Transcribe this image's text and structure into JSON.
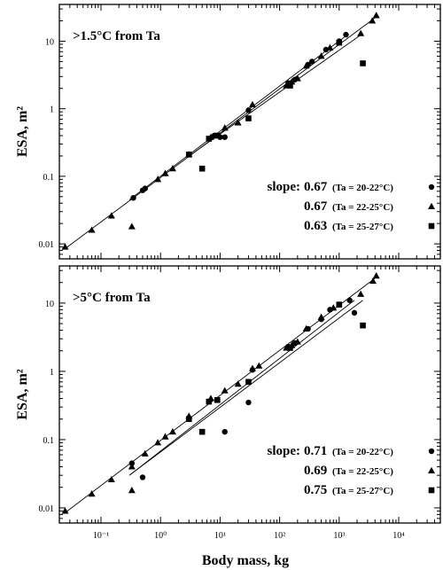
{
  "chart_data": [
    {
      "type": "scatter",
      "annotation": ">1.5°C from Ta",
      "ylabel": "ESA, m²",
      "xscale": "log",
      "yscale": "log",
      "xlim": [
        0.02,
        50000
      ],
      "ylim": [
        0.006,
        35
      ],
      "xticks": [],
      "yticks": [
        "0.01",
        "0.1",
        "1",
        "10"
      ],
      "slope_label": "slope:",
      "legend_placement": "bottom-right",
      "series": [
        {
          "marker": "circle",
          "slope": "0.67",
          "legend_text": "(Ta = 20-22°C)",
          "fit": [
            [
              0.3,
              0.045
            ],
            [
              1300,
              12
            ]
          ],
          "points": [
            [
              0.35,
              0.048
            ],
            [
              0.5,
              0.062
            ],
            [
              0.55,
              0.066
            ],
            [
              8,
              0.4
            ],
            [
              10,
              0.38
            ],
            [
              12,
              0.38
            ],
            [
              30,
              0.95
            ],
            [
              140,
              2.4
            ],
            [
              180,
              2.7
            ],
            [
              300,
              4.5
            ],
            [
              350,
              5
            ],
            [
              600,
              7.5
            ],
            [
              1000,
              10
            ],
            [
              1300,
              12.5
            ]
          ]
        },
        {
          "marker": "triangle",
          "slope": "0.67",
          "legend_text": "(Ta = 22-25°C)",
          "fit": [
            [
              0.025,
              0.0085
            ],
            [
              4500,
              24
            ]
          ],
          "points": [
            [
              0.025,
              0.009
            ],
            [
              0.07,
              0.016
            ],
            [
              0.15,
              0.026
            ],
            [
              0.33,
              0.018
            ],
            [
              0.9,
              0.09
            ],
            [
              1.2,
              0.11
            ],
            [
              1.6,
              0.13
            ],
            [
              3,
              0.21
            ],
            [
              7,
              0.38
            ],
            [
              12,
              0.52
            ],
            [
              20,
              0.62
            ],
            [
              35,
              1.15
            ],
            [
              130,
              2.2
            ],
            [
              160,
              2.5
            ],
            [
              200,
              2.8
            ],
            [
              280,
              4.3
            ],
            [
              500,
              6
            ],
            [
              700,
              8
            ],
            [
              2300,
              13
            ],
            [
              3600,
              20
            ],
            [
              4200,
              24
            ]
          ]
        },
        {
          "marker": "square",
          "slope": "0.63",
          "legend_text": "(Ta = 25-27°C)",
          "fit": [
            [
              3,
              0.2
            ],
            [
              2500,
              13
            ]
          ],
          "points": [
            [
              3,
              0.21
            ],
            [
              5,
              0.13
            ],
            [
              6.5,
              0.36
            ],
            [
              9,
              0.4
            ],
            [
              30,
              0.72
            ],
            [
              150,
              2.2
            ],
            [
              1000,
              9.5
            ],
            [
              2500,
              4.7
            ]
          ]
        }
      ]
    },
    {
      "type": "scatter",
      "annotation": ">5°C from Ta",
      "xlabel": "Body mass, kg",
      "ylabel": "ESA, m²",
      "xscale": "log",
      "yscale": "log",
      "xlim": [
        0.02,
        50000
      ],
      "ylim": [
        0.006,
        35
      ],
      "xticks": [
        "10⁻¹",
        "10⁰",
        "10¹",
        "10²",
        "10³",
        "10⁴"
      ],
      "yticks": [
        "0.01",
        "0.1",
        "1",
        "10"
      ],
      "slope_label": "slope:",
      "legend_placement": "bottom-right",
      "series": [
        {
          "marker": "circle",
          "slope": "0.71",
          "legend_text": "(Ta = 20-22°C)",
          "fit": [
            [
              0.3,
              0.03
            ],
            [
              1800,
              11
            ]
          ],
          "points": [
            [
              0.33,
              0.045
            ],
            [
              0.5,
              0.028
            ],
            [
              12,
              0.13
            ],
            [
              30,
              0.35
            ],
            [
              35,
              1.05
            ],
            [
              140,
              2.3
            ],
            [
              180,
              2.6
            ],
            [
              300,
              4.2
            ],
            [
              500,
              5.8
            ],
            [
              700,
              8
            ],
            [
              1000,
              9.5
            ],
            [
              1500,
              11
            ],
            [
              1800,
              7.2
            ]
          ]
        },
        {
          "marker": "triangle",
          "slope": "0.69",
          "legend_text": "(Ta = 22-25°C)",
          "fit": [
            [
              0.025,
              0.0085
            ],
            [
              4500,
              25
            ]
          ],
          "points": [
            [
              0.025,
              0.009
            ],
            [
              0.07,
              0.016
            ],
            [
              0.15,
              0.026
            ],
            [
              0.33,
              0.018
            ],
            [
              0.33,
              0.04
            ],
            [
              0.55,
              0.062
            ],
            [
              0.9,
              0.09
            ],
            [
              1.2,
              0.11
            ],
            [
              1.6,
              0.13
            ],
            [
              3,
              0.22
            ],
            [
              7,
              0.4
            ],
            [
              12,
              0.52
            ],
            [
              20,
              0.65
            ],
            [
              35,
              1.1
            ],
            [
              45,
              1.2
            ],
            [
              130,
              2.2
            ],
            [
              160,
              2.4
            ],
            [
              200,
              2.7
            ],
            [
              280,
              4.2
            ],
            [
              500,
              6.2
            ],
            [
              800,
              8.5
            ],
            [
              2300,
              13.5
            ],
            [
              3700,
              21
            ],
            [
              4200,
              25
            ]
          ]
        },
        {
          "marker": "square",
          "slope": "0.75",
          "legend_text": "(Ta = 25-27°C)",
          "fit": [
            [
              0.3,
              0.03
            ],
            [
              2500,
              11
            ]
          ],
          "points": [
            [
              3,
              0.2
            ],
            [
              5,
              0.13
            ],
            [
              6.5,
              0.36
            ],
            [
              9,
              0.38
            ],
            [
              30,
              0.7
            ],
            [
              150,
              2.2
            ],
            [
              1000,
              9.5
            ],
            [
              2500,
              4.7
            ]
          ]
        }
      ]
    }
  ]
}
